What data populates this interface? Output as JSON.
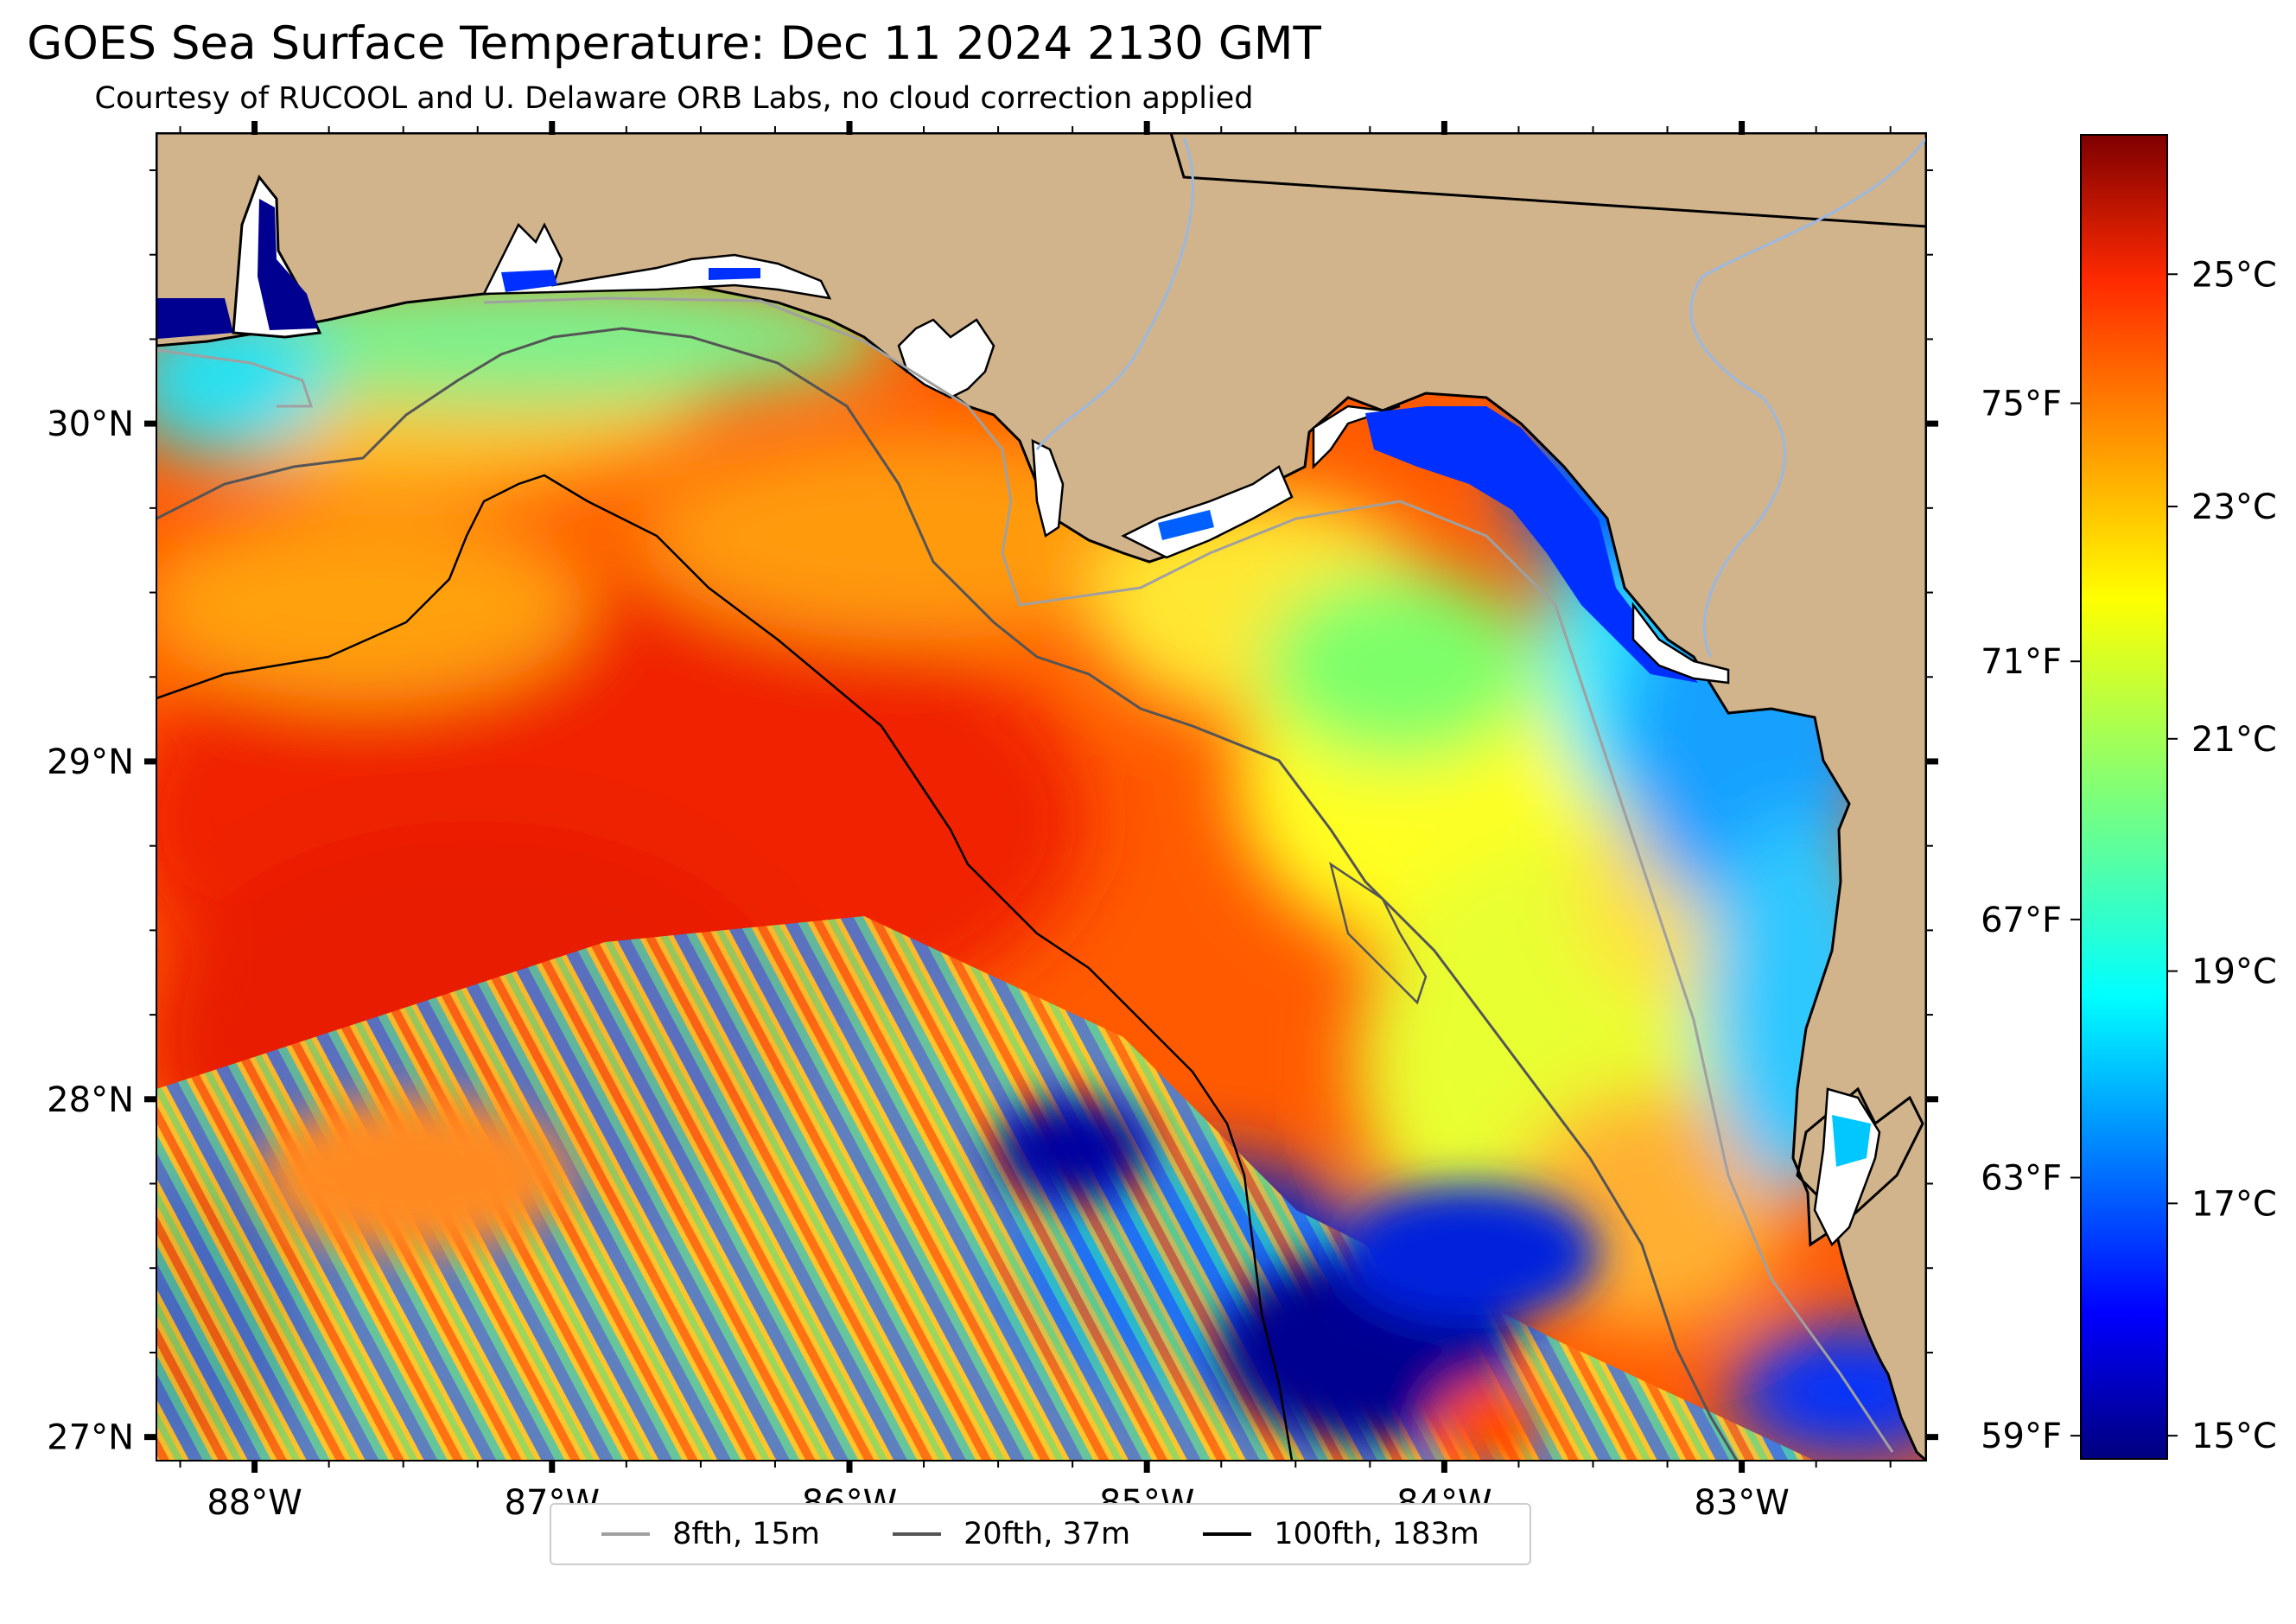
{
  "title": "GOES Sea Surface Temperature: Dec 11 2024 2130 GMT",
  "subtitle": "Courtesy of RUCOOL and U. Delaware ORB Labs, no cloud correction applied",
  "map": {
    "lon_range": [
      -88.33,
      -82.38
    ],
    "lat_range": [
      26.93,
      30.86
    ],
    "land_color": "#d2b48c",
    "lon_ticks": [
      {
        "lon": -88,
        "label": "88°W"
      },
      {
        "lon": -87,
        "label": "87°W"
      },
      {
        "lon": -86,
        "label": "86°W"
      },
      {
        "lon": -85,
        "label": "85°W"
      },
      {
        "lon": -84,
        "label": "84°W"
      },
      {
        "lon": -83,
        "label": "83°W"
      }
    ],
    "lat_ticks": [
      {
        "lat": 30,
        "label": "30°N"
      },
      {
        "lat": 29,
        "label": "29°N"
      },
      {
        "lat": 28,
        "label": "28°N"
      },
      {
        "lat": 27,
        "label": "27°N"
      }
    ]
  },
  "colorbar": {
    "colormap": "jet",
    "range_c": [
      14.8,
      26.2
    ],
    "celsius_ticks": [
      {
        "value": 25,
        "label": "25°C"
      },
      {
        "value": 23,
        "label": "23°C"
      },
      {
        "value": 21,
        "label": "21°C"
      },
      {
        "value": 19,
        "label": "19°C"
      },
      {
        "value": 17,
        "label": "17°C"
      },
      {
        "value": 15,
        "label": "15°C"
      }
    ],
    "fahrenheit_ticks": [
      {
        "value": 75,
        "label": "75°F"
      },
      {
        "value": 71,
        "label": "71°F"
      },
      {
        "value": 67,
        "label": "67°F"
      },
      {
        "value": 63,
        "label": "63°F"
      },
      {
        "value": 59,
        "label": "59°F"
      }
    ]
  },
  "legend": [
    {
      "label": "8fth, 15m",
      "color": "#a0a0a0"
    },
    {
      "label": "20fth, 37m",
      "color": "#555555"
    },
    {
      "label": "100fth, 183m",
      "color": "#000000"
    }
  ]
}
